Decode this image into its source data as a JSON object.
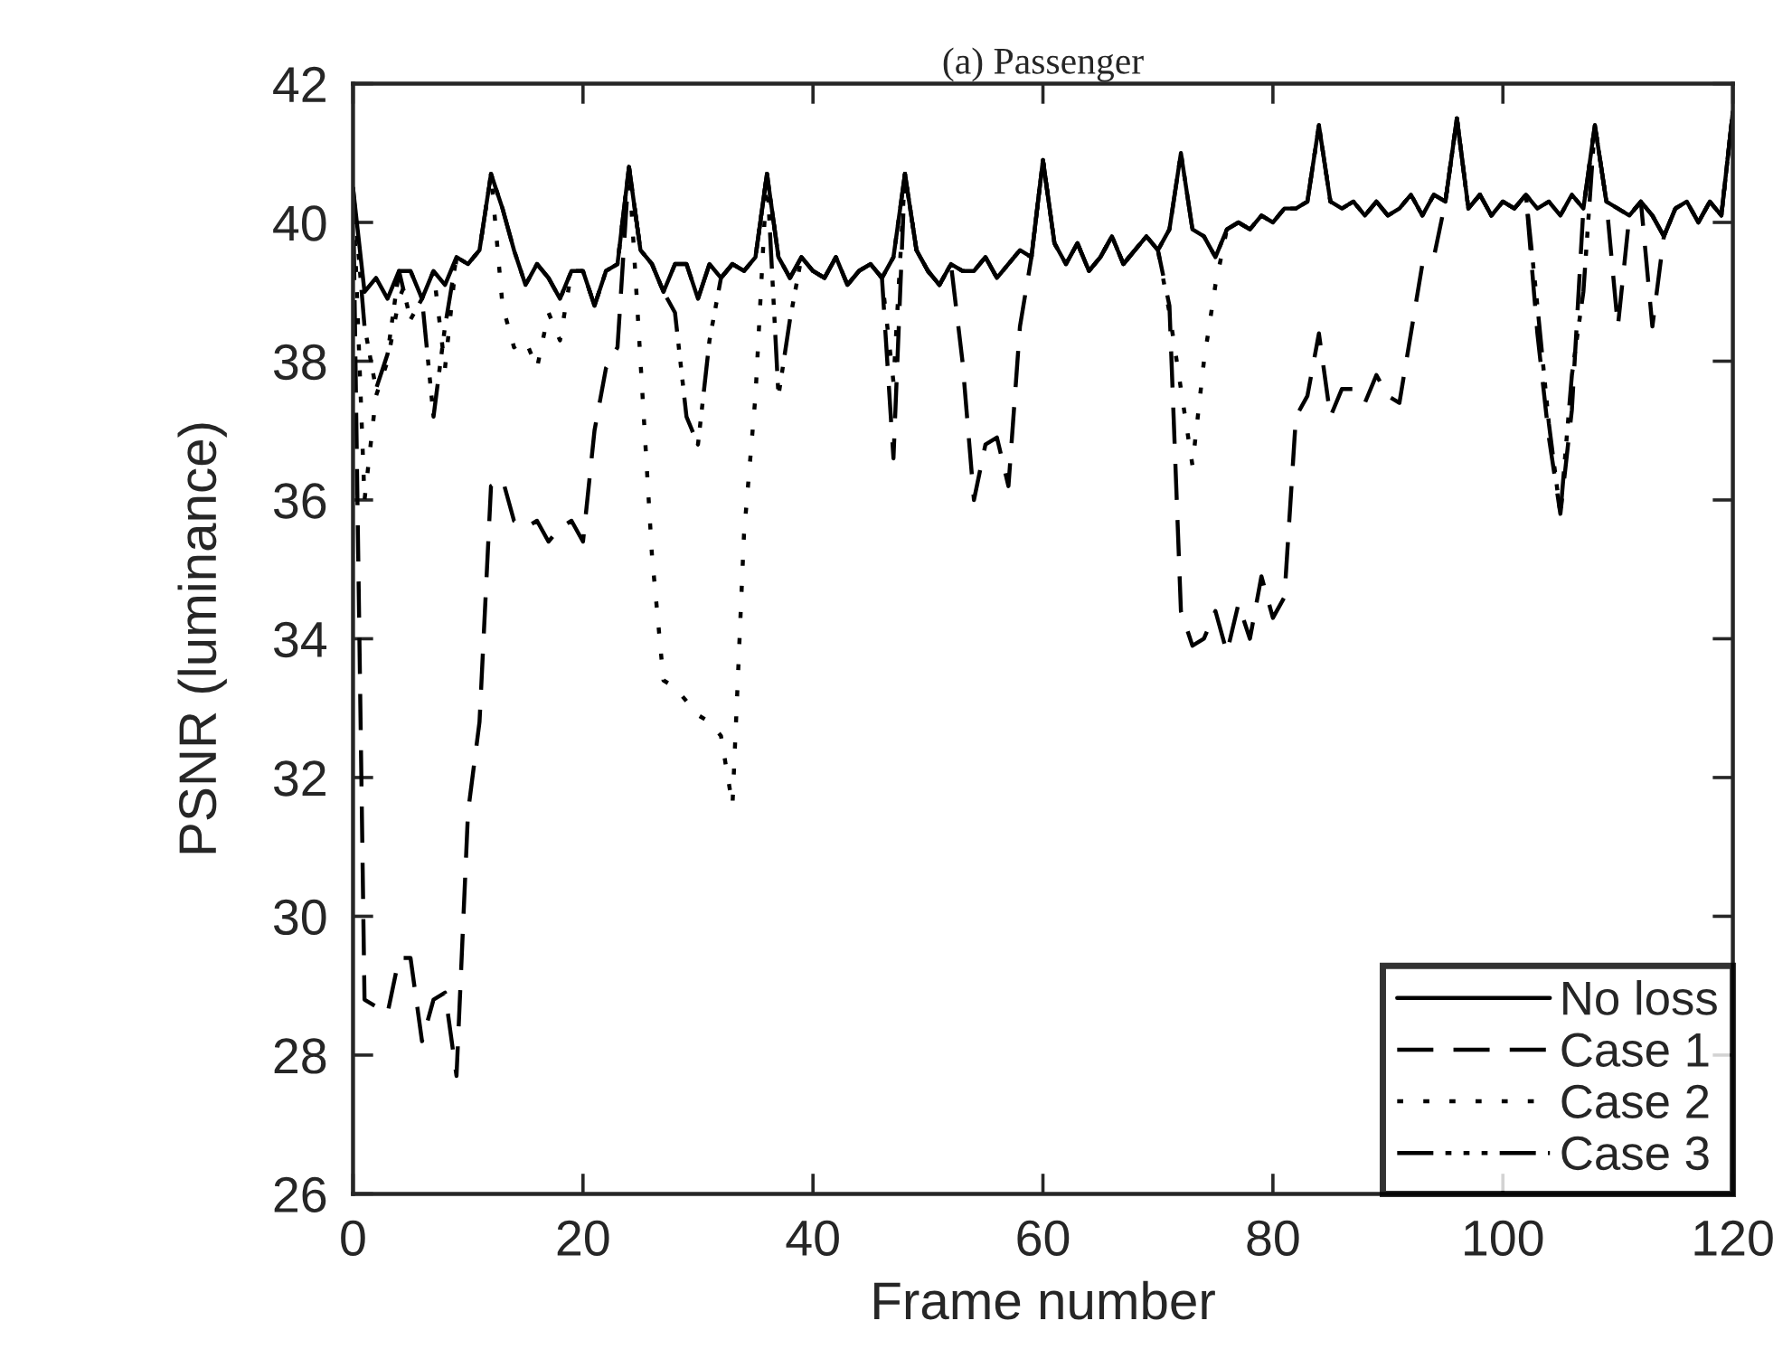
{
  "chart_data": {
    "type": "line",
    "title": "(a) Passenger",
    "xlabel": "Frame number",
    "ylabel": "PSNR (luminance)",
    "xlim": [
      0,
      120
    ],
    "xticks": [
      0,
      20,
      40,
      60,
      80,
      100,
      120
    ],
    "ylim": [
      26,
      42
    ],
    "yticks": [
      26,
      28,
      30,
      32,
      34,
      36,
      38,
      40,
      42
    ],
    "grid": false,
    "legend": "bottom right",
    "marker": "none",
    "x": [
      0,
      1,
      2,
      3,
      4,
      5,
      6,
      7,
      8,
      9,
      10,
      11,
      12,
      13,
      14,
      15,
      16,
      17,
      18,
      19,
      20,
      21,
      22,
      23,
      24,
      25,
      26,
      27,
      28,
      29,
      30,
      31,
      32,
      33,
      34,
      35,
      36,
      37,
      38,
      39,
      40,
      41,
      42,
      43,
      44,
      45,
      46,
      47,
      48,
      49,
      50,
      51,
      52,
      53,
      54,
      55,
      56,
      57,
      58,
      59,
      60,
      61,
      62,
      63,
      64,
      65,
      66,
      67,
      68,
      69,
      70,
      71,
      72,
      73,
      74,
      75,
      76,
      77,
      78,
      79,
      80,
      81,
      82,
      83,
      84,
      85,
      86,
      87,
      88,
      89,
      90,
      91,
      92,
      93,
      94,
      95,
      96,
      97,
      98,
      99,
      100,
      101,
      102,
      103,
      104,
      105,
      106,
      107,
      108,
      109,
      110,
      111,
      112,
      113,
      114,
      115,
      116,
      117,
      118,
      119,
      120
    ],
    "series": [
      {
        "name": "No loss",
        "color": "#000000",
        "line_style": "solid",
        "values": [
          40.5,
          39.0,
          39.2,
          38.9,
          39.3,
          39.3,
          38.9,
          39.3,
          39.1,
          39.5,
          39.4,
          39.6,
          40.7,
          40.2,
          39.6,
          39.1,
          39.4,
          39.2,
          38.9,
          39.3,
          39.3,
          38.8,
          39.3,
          39.4,
          40.8,
          39.6,
          39.4,
          39.0,
          39.4,
          39.4,
          38.9,
          39.4,
          39.2,
          39.4,
          39.3,
          39.5,
          40.7,
          39.5,
          39.2,
          39.5,
          39.3,
          39.2,
          39.5,
          39.1,
          39.3,
          39.4,
          39.2,
          39.5,
          40.7,
          39.6,
          39.3,
          39.1,
          39.4,
          39.3,
          39.3,
          39.5,
          39.2,
          39.4,
          39.6,
          39.5,
          40.9,
          39.7,
          39.4,
          39.7,
          39.3,
          39.5,
          39.8,
          39.4,
          39.6,
          39.8,
          39.6,
          39.9,
          41.0,
          39.9,
          39.8,
          39.5,
          39.9,
          40.0,
          39.9,
          40.1,
          40.0,
          40.2,
          40.2,
          40.3,
          41.4,
          40.3,
          40.2,
          40.3,
          40.1,
          40.3,
          40.1,
          40.2,
          40.4,
          40.1,
          40.4,
          40.3,
          41.5,
          40.2,
          40.4,
          40.1,
          40.3,
          40.2,
          40.4,
          40.2,
          40.3,
          40.1,
          40.4,
          40.2,
          41.4,
          40.3,
          40.2,
          40.1,
          40.3,
          40.1,
          39.8,
          40.2,
          40.3,
          40.0,
          40.3,
          40.1,
          41.6
        ]
      },
      {
        "name": "Case 1",
        "color": "#000000",
        "line_style": "dashed",
        "values": [
          40.5,
          28.8,
          28.7,
          28.6,
          29.4,
          29.4,
          28.2,
          28.8,
          28.9,
          27.7,
          31.5,
          32.8,
          36.2,
          36.3,
          35.7,
          35.6,
          35.7,
          35.4,
          35.6,
          35.7,
          35.4,
          37.0,
          37.9,
          38.2,
          40.8,
          39.6,
          39.4,
          39.0,
          39.4,
          39.4,
          38.9,
          39.4,
          39.2,
          39.4,
          39.3,
          39.5,
          40.7,
          39.5,
          39.2,
          39.5,
          39.3,
          39.2,
          39.5,
          39.1,
          39.3,
          39.4,
          39.2,
          36.6,
          40.7,
          39.6,
          39.3,
          39.1,
          39.4,
          38.0,
          36.0,
          36.8,
          36.9,
          36.2,
          38.5,
          39.5,
          40.9,
          39.7,
          39.4,
          39.7,
          39.3,
          39.5,
          39.8,
          39.4,
          39.6,
          39.8,
          39.6,
          38.8,
          34.4,
          33.9,
          34.0,
          34.4,
          33.8,
          34.5,
          34.0,
          34.9,
          34.3,
          34.6,
          37.2,
          37.5,
          38.4,
          37.2,
          37.6,
          37.6,
          37.4,
          37.8,
          37.5,
          37.4,
          38.4,
          39.4,
          39.5,
          40.3,
          41.5,
          40.2,
          40.4,
          40.1,
          40.3,
          40.2,
          40.4,
          38.4,
          36.9,
          35.8,
          37.3,
          40.2,
          41.4,
          40.3,
          38.5,
          40.1,
          40.3,
          38.5,
          39.8,
          40.2,
          40.3,
          40.0,
          40.3,
          40.1,
          41.6
        ]
      },
      {
        "name": "Case 2",
        "color": "#000000",
        "line_style": "dotted",
        "values": [
          40.5,
          36.0,
          37.5,
          38.0,
          38.9,
          39.3,
          38.9,
          39.3,
          37.9,
          39.5,
          39.4,
          39.6,
          40.7,
          38.8,
          38.2,
          38.3,
          37.9,
          38.7,
          38.3,
          39.3,
          39.3,
          38.8,
          39.3,
          39.4,
          40.8,
          38.0,
          35.2,
          33.4,
          33.3,
          33.1,
          32.9,
          32.8,
          32.6,
          31.6,
          35.5,
          37.5,
          40.7,
          39.5,
          39.2,
          39.5,
          39.3,
          39.2,
          39.5,
          39.1,
          39.3,
          39.4,
          39.2,
          37.7,
          40.7,
          39.6,
          39.3,
          39.1,
          39.4,
          39.3,
          39.3,
          39.5,
          39.2,
          39.4,
          39.6,
          39.5,
          40.9,
          39.7,
          39.4,
          39.7,
          39.3,
          39.5,
          39.8,
          39.4,
          39.6,
          39.8,
          39.6,
          38.7,
          37.6,
          36.5,
          38.0,
          39.1,
          39.9,
          40.0,
          39.9,
          40.1,
          40.0,
          40.2,
          40.2,
          40.3,
          41.4,
          40.3,
          40.2,
          40.3,
          40.1,
          40.3,
          40.1,
          40.2,
          40.4,
          40.1,
          40.4,
          40.3,
          41.5,
          40.2,
          40.4,
          40.1,
          40.3,
          40.2,
          40.4,
          40.2,
          40.3,
          40.1,
          40.4,
          40.2,
          41.4,
          40.3,
          40.2,
          40.1,
          40.3,
          40.1,
          39.8,
          40.2,
          40.3,
          40.0,
          40.3,
          40.1,
          41.6
        ]
      },
      {
        "name": "Case 3",
        "color": "#000000",
        "line_style": "dashdot",
        "values": [
          40.5,
          38.5,
          37.6,
          38.1,
          39.3,
          38.6,
          38.9,
          37.2,
          38.5,
          39.5,
          39.4,
          39.6,
          40.7,
          40.2,
          39.6,
          39.1,
          39.4,
          39.2,
          38.9,
          39.3,
          39.3,
          38.8,
          39.3,
          39.4,
          40.8,
          39.6,
          39.4,
          39.0,
          38.7,
          37.2,
          36.8,
          38.3,
          39.2,
          39.4,
          39.3,
          39.5,
          40.7,
          37.5,
          38.6,
          39.5,
          39.3,
          39.2,
          39.5,
          39.1,
          39.3,
          39.4,
          39.2,
          39.5,
          40.7,
          39.6,
          39.3,
          39.1,
          39.4,
          39.3,
          39.3,
          39.5,
          39.2,
          39.4,
          39.6,
          39.5,
          40.9,
          39.7,
          39.4,
          39.7,
          39.3,
          39.5,
          39.8,
          39.4,
          39.6,
          39.8,
          39.6,
          39.9,
          41.0,
          39.9,
          39.8,
          39.5,
          39.9,
          40.0,
          39.9,
          40.1,
          40.0,
          40.2,
          40.2,
          40.3,
          41.4,
          40.3,
          40.2,
          40.3,
          40.1,
          40.3,
          40.1,
          40.2,
          40.4,
          40.1,
          40.4,
          40.3,
          41.5,
          40.2,
          40.4,
          40.1,
          40.3,
          40.2,
          40.4,
          38.8,
          37.1,
          35.8,
          37.8,
          39.0,
          41.4,
          40.3,
          40.2,
          40.1,
          40.3,
          40.1,
          39.8,
          40.2,
          40.3,
          40.0,
          40.3,
          40.1,
          41.6
        ]
      }
    ]
  }
}
